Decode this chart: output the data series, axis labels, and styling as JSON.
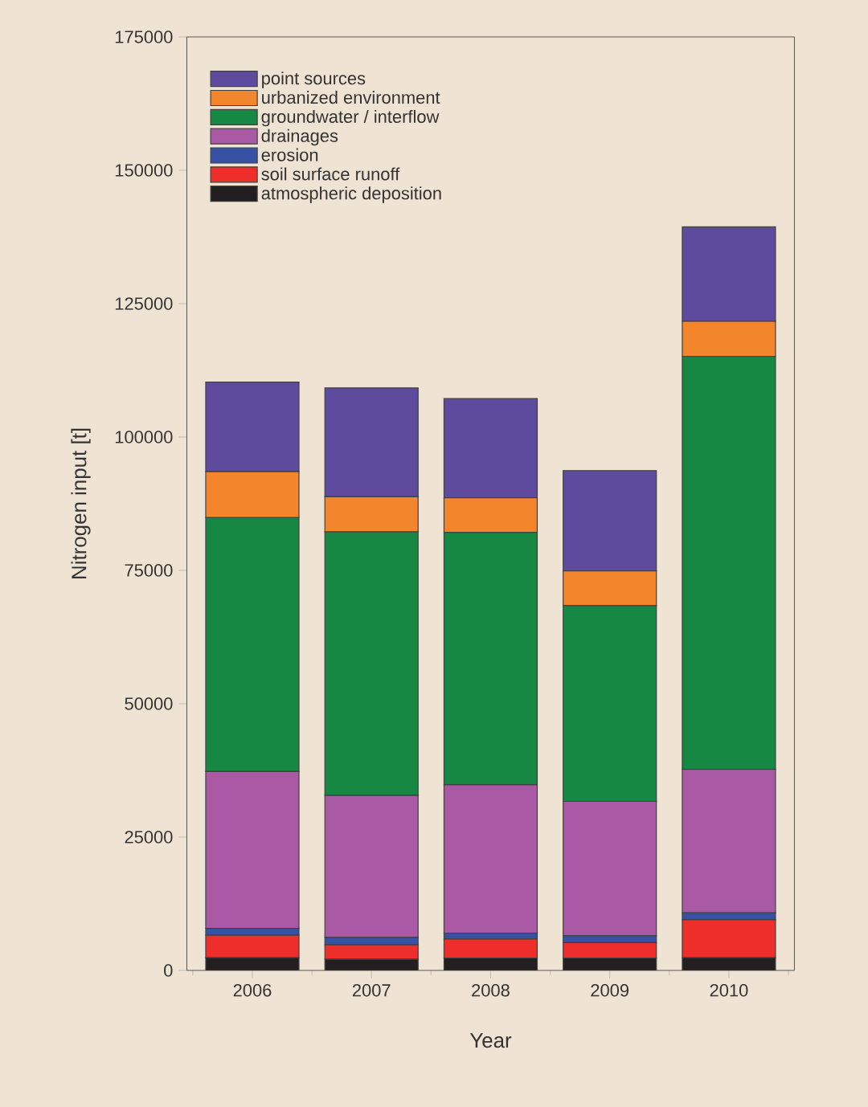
{
  "chart_data": {
    "type": "bar",
    "stacked": true,
    "xlabel": "Year",
    "ylabel": "Nitrogen input [t]",
    "categories": [
      "2006",
      "2007",
      "2008",
      "2009",
      "2010"
    ],
    "ylim": [
      0,
      175000
    ],
    "yticks": [
      0,
      25000,
      50000,
      75000,
      100000,
      125000,
      150000,
      175000
    ],
    "legend": "top left",
    "series": [
      {
        "name": "atmospheric deposition",
        "color": "#231f20",
        "values": [
          2400,
          2100,
          2300,
          2300,
          2400
        ]
      },
      {
        "name": "soil surface runoff",
        "color": "#ee2e2b",
        "values": [
          4200,
          2700,
          3600,
          2900,
          7100
        ]
      },
      {
        "name": "erosion",
        "color": "#3752a4",
        "values": [
          1300,
          1400,
          1100,
          1300,
          1300
        ]
      },
      {
        "name": "drainages",
        "color": "#aa5aa5",
        "values": [
          29400,
          26600,
          27800,
          25200,
          26900
        ]
      },
      {
        "name": "groundwater / interflow",
        "color": "#178844",
        "values": [
          47600,
          49400,
          47300,
          36700,
          77400
        ]
      },
      {
        "name": "urbanized environment",
        "color": "#f3852c",
        "values": [
          8600,
          6600,
          6500,
          6500,
          6600
        ]
      },
      {
        "name": "point sources",
        "color": "#5e4b9e",
        "values": [
          16800,
          20400,
          18600,
          18800,
          17700
        ]
      }
    ]
  }
}
